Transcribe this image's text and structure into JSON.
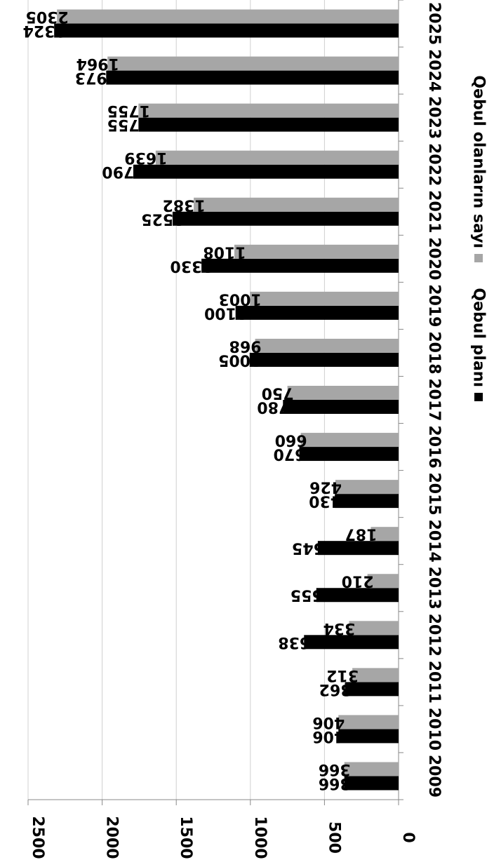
{
  "chart_data": {
    "type": "bar",
    "orientation": "horizontal",
    "rotation": "rotated 90 degrees clockwise",
    "categories": [
      "2009",
      "2010",
      "2011",
      "2012",
      "2013",
      "2014",
      "2015",
      "2016",
      "2017",
      "2018",
      "2019",
      "2020",
      "2021",
      "2022",
      "2023",
      "2024",
      "2025"
    ],
    "series": [
      {
        "name": "Qəbul planı",
        "color": "#000000",
        "values": [
          366,
          406,
          362,
          638,
          555,
          545,
          430,
          670,
          780,
          1005,
          1100,
          1330,
          1525,
          1790,
          1755,
          1973,
          2324
        ]
      },
      {
        "name": "Qəbul olanların sayı",
        "color": "#a6a6a6",
        "values": [
          366,
          406,
          312,
          334,
          210,
          187,
          426,
          660,
          750,
          968,
          1003,
          1108,
          1382,
          1639,
          1755,
          1964,
          2305
        ]
      }
    ],
    "value_axis": {
      "min": 0,
      "max": 2500,
      "ticks": [
        "0",
        "500",
        "1000",
        "1500",
        "2000",
        "2500"
      ]
    },
    "grid": true,
    "legend_position": "right",
    "data_labels": true
  }
}
